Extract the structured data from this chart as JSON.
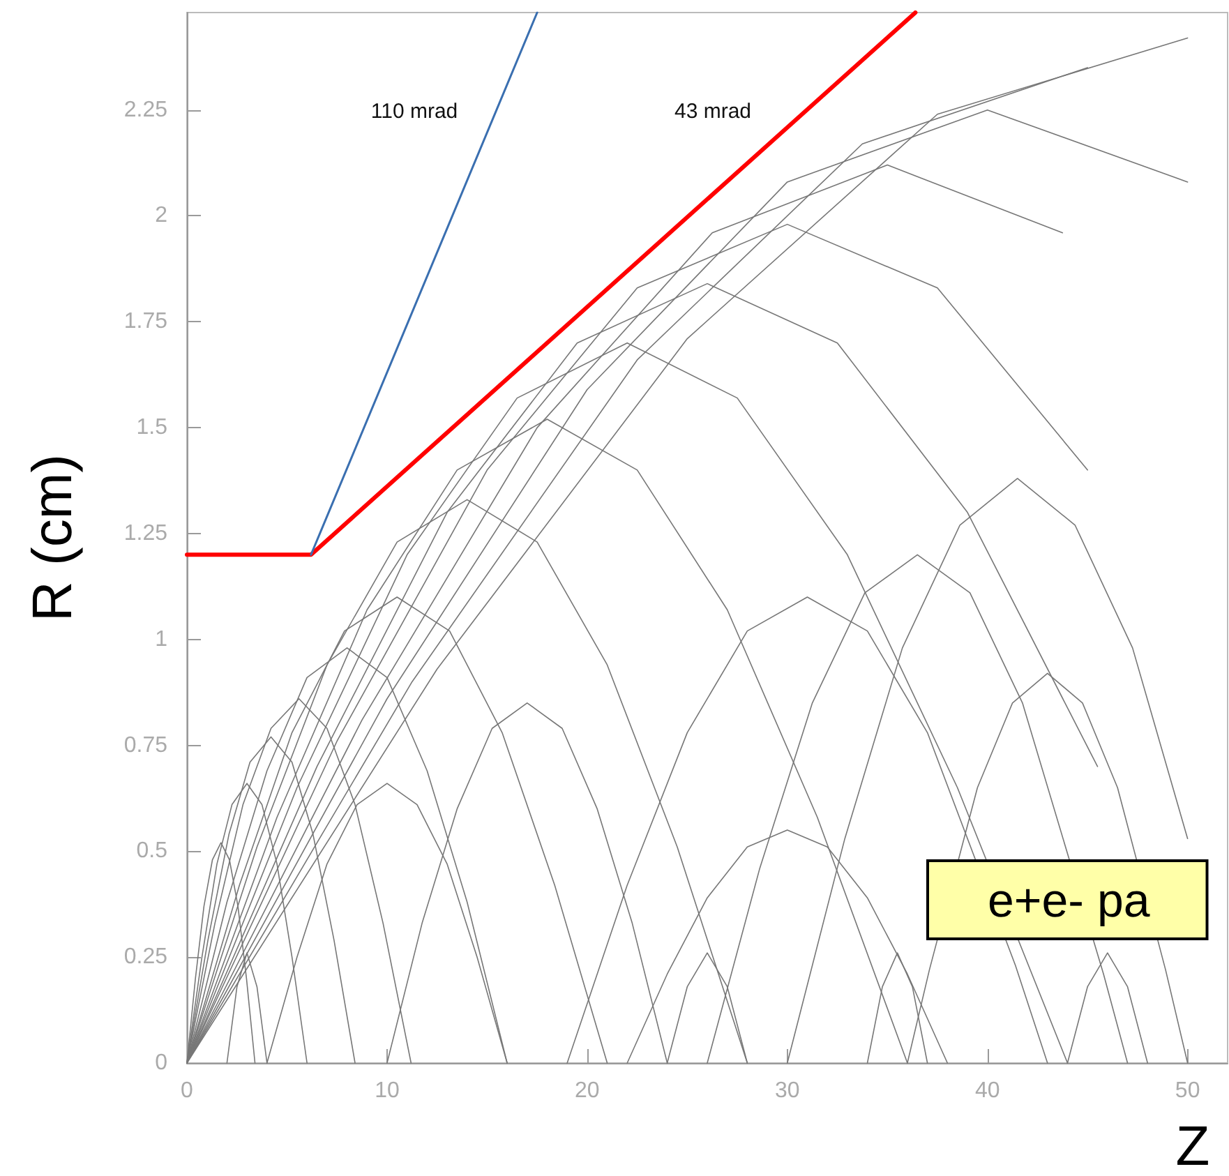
{
  "chart_data": {
    "type": "line",
    "xlabel": "Z",
    "ylabel": "R (cm)",
    "xlim": [
      0,
      52
    ],
    "ylim": [
      0,
      2.48
    ],
    "xticks": [
      0,
      10,
      20,
      30,
      40,
      50
    ],
    "yticks": [
      0,
      0.25,
      0.5,
      0.75,
      1,
      1.25,
      1.5,
      1.75,
      2,
      2.25
    ],
    "grid": false,
    "marker": "none",
    "line_style": "solid",
    "annotations": [
      "110 mrad",
      "43 mrad",
      "e+e- pa"
    ],
    "series": [
      {
        "color": "#ff0000",
        "x": [
          0,
          6.2,
          36.4
        ],
        "values": [
          1.2,
          1.2,
          2.48
        ]
      },
      {
        "color": "#3a6fb0",
        "x": [
          6.2,
          17.5
        ],
        "values": [
          1.2,
          2.48
        ]
      },
      {
        "color": "#777777",
        "x": [
          0,
          0.425,
          0.85,
          1.275,
          1.7,
          2.125,
          2.55,
          2.975,
          3.4
        ],
        "values": [
          0,
          0.2,
          0.37,
          0.48,
          0.52,
          0.48,
          0.37,
          0.2,
          0
        ]
      },
      {
        "color": "#777777",
        "x": [
          0,
          0.75,
          1.5,
          2.25,
          3,
          3.75,
          4.5,
          5.25,
          6
        ],
        "values": [
          0,
          0.25,
          0.47,
          0.61,
          0.66,
          0.61,
          0.47,
          0.25,
          0
        ]
      },
      {
        "color": "#777777",
        "x": [
          0,
          1.05,
          2.1,
          3.15,
          4.2,
          5.25,
          6.3,
          7.35,
          8.4
        ],
        "values": [
          0,
          0.29,
          0.54,
          0.71,
          0.77,
          0.71,
          0.54,
          0.29,
          0
        ]
      },
      {
        "color": "#777777",
        "x": [
          0,
          1.4,
          2.8,
          4.2,
          5.6,
          7,
          8.4,
          9.8,
          11.2
        ],
        "values": [
          0,
          0.33,
          0.61,
          0.79,
          0.86,
          0.79,
          0.61,
          0.33,
          0
        ]
      },
      {
        "color": "#777777",
        "x": [
          0,
          2,
          4,
          6,
          8,
          10,
          12,
          14,
          16
        ],
        "values": [
          0,
          0.38,
          0.69,
          0.91,
          0.98,
          0.91,
          0.69,
          0.38,
          0
        ]
      },
      {
        "color": "#777777",
        "x": [
          0,
          2.625,
          5.25,
          7.875,
          10.5,
          13.125,
          15.75,
          18.375,
          21
        ],
        "values": [
          0,
          0.42,
          0.78,
          1.02,
          1.1,
          1.02,
          0.78,
          0.42,
          0
        ]
      },
      {
        "color": "#777777",
        "x": [
          0,
          3.5,
          7,
          10.5,
          14,
          17.5,
          21,
          24.5,
          28
        ],
        "values": [
          0,
          0.51,
          0.94,
          1.23,
          1.33,
          1.23,
          0.94,
          0.51,
          0
        ]
      },
      {
        "color": "#777777",
        "x": [
          0,
          4.5,
          9,
          13.5,
          18,
          22.5,
          27,
          31.5,
          36
        ],
        "values": [
          0,
          0.58,
          1.07,
          1.4,
          1.52,
          1.4,
          1.07,
          0.58,
          0
        ]
      },
      {
        "color": "#777777",
        "x": [
          0,
          5.5,
          11,
          16.5,
          22,
          27.5,
          33,
          38.5,
          44
        ],
        "values": [
          0,
          0.65,
          1.2,
          1.57,
          1.7,
          1.57,
          1.2,
          0.65,
          0
        ]
      },
      {
        "color": "#777777",
        "x": [
          0,
          6.5,
          13,
          19.5,
          26,
          32.5,
          39,
          45.5
        ],
        "values": [
          0,
          0.7,
          1.3,
          1.7,
          1.84,
          1.7,
          1.3,
          0.7
        ]
      },
      {
        "color": "#777777",
        "x": [
          0,
          7.5,
          15,
          22.5,
          30,
          37.5,
          45
        ],
        "values": [
          0,
          0.76,
          1.4,
          1.83,
          1.98,
          1.83,
          1.4
        ]
      },
      {
        "color": "#777777",
        "x": [
          0,
          8.75,
          17.5,
          26.25,
          35,
          43.75
        ],
        "values": [
          0,
          0.81,
          1.5,
          1.96,
          2.12,
          1.96
        ]
      },
      {
        "color": "#777777",
        "x": [
          0,
          10,
          20,
          30,
          40,
          50
        ],
        "values": [
          0,
          0.86,
          1.59,
          2.08,
          2.25,
          2.08
        ]
      },
      {
        "color": "#777777",
        "x": [
          0,
          11.25,
          22.5,
          33.75,
          45
        ],
        "values": [
          0,
          0.9,
          1.66,
          2.17,
          2.35
        ]
      },
      {
        "color": "#777777",
        "x": [
          0,
          12.5,
          25,
          37.5,
          50
        ],
        "values": [
          0,
          0.93,
          1.71,
          2.24,
          2.42
        ]
      },
      {
        "color": "#777777",
        "x": [
          4,
          5.5,
          7,
          8.5,
          10,
          11.5,
          13,
          14.5,
          16
        ],
        "values": [
          0,
          0.25,
          0.47,
          0.61,
          0.66,
          0.61,
          0.47,
          0.25,
          0
        ]
      },
      {
        "color": "#777777",
        "x": [
          10,
          11.75,
          13.5,
          15.25,
          17,
          18.75,
          20.5,
          22.25,
          24
        ],
        "values": [
          0,
          0.33,
          0.6,
          0.79,
          0.85,
          0.79,
          0.6,
          0.33,
          0
        ]
      },
      {
        "color": "#777777",
        "x": [
          19,
          22,
          25,
          28,
          31,
          34,
          37,
          41.4,
          43
        ],
        "values": [
          0,
          0.42,
          0.78,
          1.02,
          1.1,
          1.02,
          0.78,
          0.23,
          0
        ]
      },
      {
        "color": "#777777",
        "x": [
          26,
          28.625,
          31.25,
          33.875,
          36.5,
          39.125,
          41.75,
          45.8,
          47
        ],
        "values": [
          0,
          0.46,
          0.85,
          1.11,
          1.2,
          1.11,
          0.85,
          0.21,
          0
        ]
      },
      {
        "color": "#777777",
        "x": [
          30,
          32.875,
          35.75,
          38.625,
          41.5,
          44.375,
          47.25,
          50
        ],
        "values": [
          0,
          0.53,
          0.98,
          1.27,
          1.38,
          1.27,
          0.98,
          0.53
        ]
      },
      {
        "color": "#777777",
        "x": [
          22,
          24,
          26,
          28,
          30,
          32,
          34,
          36,
          38
        ],
        "values": [
          0,
          0.21,
          0.39,
          0.51,
          0.55,
          0.51,
          0.39,
          0.21,
          0
        ]
      },
      {
        "color": "#777777",
        "x": [
          36,
          37.1,
          39.5,
          41.25,
          43,
          44.75,
          46.5,
          48.9,
          50
        ],
        "values": [
          0,
          0.22,
          0.65,
          0.85,
          0.92,
          0.85,
          0.65,
          0.22,
          0
        ]
      },
      {
        "color": "#777777",
        "x": [
          2,
          2.5,
          3,
          3.5,
          4
        ],
        "values": [
          0,
          0.18,
          0.26,
          0.18,
          0
        ]
      },
      {
        "color": "#777777",
        "x": [
          24,
          25,
          26,
          27,
          28
        ],
        "values": [
          0,
          0.18,
          0.26,
          0.18,
          0
        ]
      },
      {
        "color": "#777777",
        "x": [
          34,
          34.75,
          35.5,
          36.25,
          37
        ],
        "values": [
          0,
          0.18,
          0.26,
          0.18,
          0
        ]
      },
      {
        "color": "#777777",
        "x": [
          44,
          45,
          46,
          47,
          48
        ],
        "values": [
          0,
          0.18,
          0.26,
          0.18,
          0
        ]
      }
    ]
  }
}
